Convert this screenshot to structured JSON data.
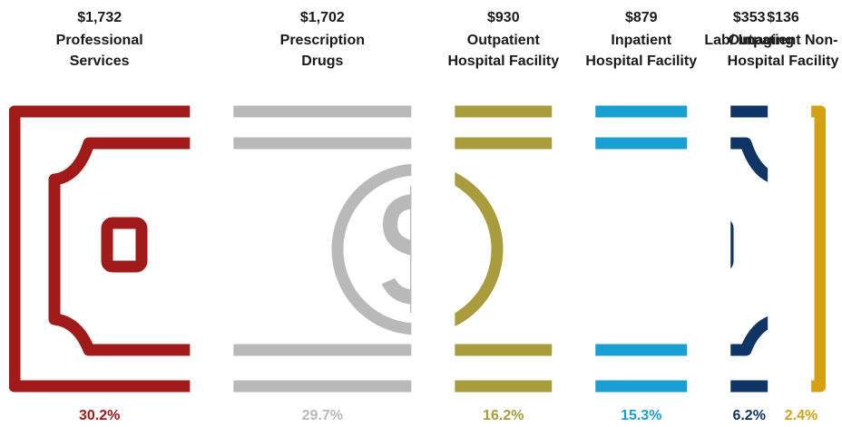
{
  "chart_data": {
    "type": "bill-slices",
    "categories": [
      "Professional Services",
      "Prescription Drugs",
      "Outpatient Hospital Facility",
      "Inpatient Hospital Facility",
      "Lab/ Imaging",
      "Outpatient Non-Hospital Facility"
    ],
    "amounts": [
      1732,
      1702,
      930,
      879,
      353,
      136
    ],
    "amount_labels": [
      "$1,732",
      "$1,702",
      "$930",
      "$879",
      "$353",
      "$136"
    ],
    "values": [
      30.2,
      29.7,
      16.2,
      15.3,
      6.2,
      2.4
    ],
    "value_labels": [
      "30.2%",
      "29.7%",
      "16.2%",
      "15.3%",
      "6.2%",
      "2.4%"
    ],
    "colors": [
      "#a11a1a",
      "#b9b9b9",
      "#a89c3c",
      "#1a9fd2",
      "#0f3566",
      "#d4a114"
    ]
  }
}
